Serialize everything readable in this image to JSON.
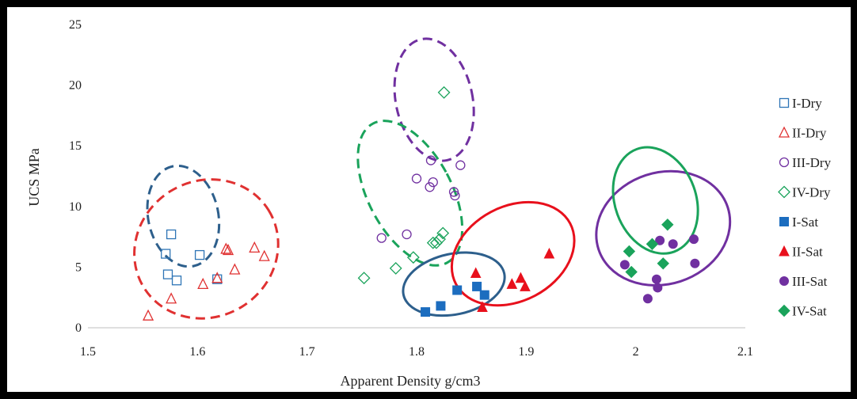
{
  "chart_data": {
    "type": "scatter",
    "title": "",
    "xlabel": "Apparent Density g/cm3",
    "ylabel": "UCS MPa",
    "xlim": [
      1.5,
      2.1
    ],
    "ylim": [
      0,
      25
    ],
    "x_ticks": [
      "1.5",
      "1.6",
      "1.7",
      "1.8",
      "1.9",
      "2",
      "2.1"
    ],
    "y_ticks": [
      "0",
      "5",
      "10",
      "15",
      "20",
      "25"
    ],
    "grid": false,
    "legend_position": "right",
    "series": [
      {
        "name": "I-Dry",
        "marker": "square",
        "filled": false,
        "color": "#2e75b6",
        "points": [
          [
            1.571,
            6.1
          ],
          [
            1.573,
            4.4
          ],
          [
            1.576,
            7.7
          ],
          [
            1.581,
            3.9
          ],
          [
            1.602,
            6.0
          ],
          [
            1.618,
            4.0
          ]
        ]
      },
      {
        "name": "II-Dry",
        "marker": "triangle",
        "filled": false,
        "color": "#e03131",
        "points": [
          [
            1.555,
            1.0
          ],
          [
            1.576,
            2.4
          ],
          [
            1.605,
            3.6
          ],
          [
            1.618,
            4.1
          ],
          [
            1.626,
            6.5
          ],
          [
            1.628,
            6.4
          ],
          [
            1.634,
            4.8
          ],
          [
            1.652,
            6.6
          ],
          [
            1.661,
            5.9
          ]
        ]
      },
      {
        "name": "III-Dry",
        "marker": "circle",
        "filled": false,
        "color": "#7030a0",
        "points": [
          [
            1.768,
            7.4
          ],
          [
            1.791,
            7.7
          ],
          [
            1.8,
            12.3
          ],
          [
            1.812,
            11.6
          ],
          [
            1.813,
            13.8
          ],
          [
            1.815,
            12.0
          ],
          [
            1.834,
            11.2
          ],
          [
            1.835,
            10.9
          ],
          [
            1.84,
            13.4
          ]
        ]
      },
      {
        "name": "IV-Dry",
        "marker": "diamond",
        "filled": false,
        "color": "#1aa35b",
        "points": [
          [
            1.752,
            4.1
          ],
          [
            1.781,
            4.9
          ],
          [
            1.797,
            5.8
          ],
          [
            1.815,
            7.0
          ],
          [
            1.818,
            7.0
          ],
          [
            1.821,
            7.3
          ],
          [
            1.824,
            7.8
          ],
          [
            1.825,
            19.4
          ]
        ]
      },
      {
        "name": "I-Sat",
        "marker": "square",
        "filled": true,
        "color": "#1c6dbf",
        "points": [
          [
            1.808,
            1.3
          ],
          [
            1.822,
            1.8
          ],
          [
            1.837,
            3.1
          ],
          [
            1.855,
            3.4
          ],
          [
            1.862,
            2.7
          ]
        ]
      },
      {
        "name": "II-Sat",
        "marker": "triangle",
        "filled": true,
        "color": "#e8101c",
        "points": [
          [
            1.854,
            4.5
          ],
          [
            1.86,
            1.7
          ],
          [
            1.887,
            3.6
          ],
          [
            1.895,
            4.1
          ],
          [
            1.899,
            3.4
          ],
          [
            1.921,
            6.1
          ]
        ]
      },
      {
        "name": "III-Sat",
        "marker": "circle",
        "filled": true,
        "color": "#7030a0",
        "points": [
          [
            1.99,
            5.2
          ],
          [
            2.011,
            2.4
          ],
          [
            2.019,
            4.0
          ],
          [
            2.02,
            3.3
          ],
          [
            2.022,
            7.2
          ],
          [
            2.034,
            6.9
          ],
          [
            2.053,
            7.3
          ],
          [
            2.054,
            5.3
          ]
        ]
      },
      {
        "name": "IV-Sat",
        "marker": "diamond",
        "filled": true,
        "color": "#1aa35b",
        "points": [
          [
            1.994,
            6.3
          ],
          [
            1.996,
            4.6
          ],
          [
            2.015,
            6.9
          ],
          [
            2.025,
            5.3
          ],
          [
            2.029,
            8.5
          ]
        ]
      }
    ],
    "group_ellipses": [
      {
        "color": "#2d5f8c",
        "dashed": true,
        "cx": 1.587,
        "cy": 9.2,
        "rx": 0.032,
        "ry": 4.2,
        "angle": -12
      },
      {
        "color": "#e03131",
        "dashed": true,
        "cx": 1.608,
        "cy": 6.5,
        "rx": 0.067,
        "ry": 5.6,
        "angle": -32
      },
      {
        "color": "#7030a0",
        "dashed": true,
        "cx": 1.816,
        "cy": 18.8,
        "rx": 0.035,
        "ry": 5.1,
        "angle": -12
      },
      {
        "color": "#1aa35b",
        "dashed": true,
        "cx": 1.794,
        "cy": 11.1,
        "rx": 0.038,
        "ry": 6.5,
        "angle": -28
      },
      {
        "color": "#2d5f8c",
        "dashed": false,
        "cx": 1.834,
        "cy": 3.6,
        "rx": 0.047,
        "ry": 2.5,
        "angle": -12
      },
      {
        "color": "#e8101c",
        "dashed": false,
        "cx": 1.888,
        "cy": 6.1,
        "rx": 0.059,
        "ry": 3.9,
        "angle": -28
      },
      {
        "color": "#7030a0",
        "dashed": false,
        "cx": 2.025,
        "cy": 8.2,
        "rx": 0.062,
        "ry": 4.6,
        "angle": -18
      },
      {
        "color": "#1aa35b",
        "dashed": false,
        "cx": 2.018,
        "cy": 10.5,
        "rx": 0.037,
        "ry": 4.5,
        "angle": -20
      }
    ]
  }
}
